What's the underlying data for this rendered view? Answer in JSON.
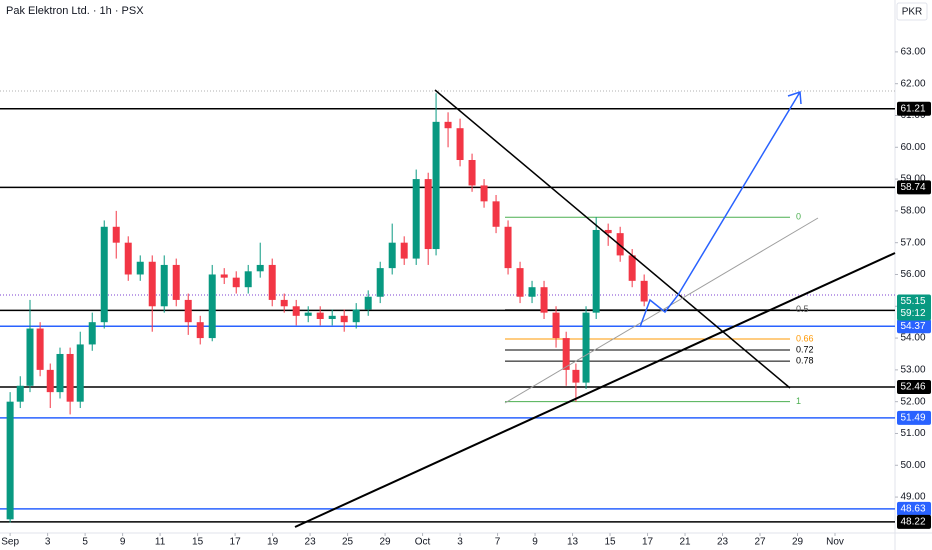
{
  "chart_data": {
    "type": "candlestick",
    "title": "Pak Elektron Ltd. · 1h · PSX",
    "currency": "PKR",
    "countdown": "59:12",
    "ylim": [
      47.87,
      63.94
    ],
    "yticks": [
      {
        "value": 49,
        "label": "49.00"
      },
      {
        "value": 50,
        "label": "50.00"
      },
      {
        "value": 51,
        "label": "51.00"
      },
      {
        "value": 52,
        "label": "52.00"
      },
      {
        "value": 53,
        "label": "53.00"
      },
      {
        "value": 54,
        "label": "54.00"
      },
      {
        "value": 55,
        "label": "55.00"
      },
      {
        "value": 56,
        "label": "56.00"
      },
      {
        "value": 57,
        "label": "57.00"
      },
      {
        "value": 58,
        "label": "58.00"
      },
      {
        "value": 59,
        "label": "59.00"
      },
      {
        "value": 60,
        "label": "60.00"
      },
      {
        "value": 61,
        "label": "61.00"
      },
      {
        "value": 62,
        "label": "62.00"
      },
      {
        "value": 63,
        "label": "63.00"
      }
    ],
    "xlim": [
      -0.27,
      23.6
    ],
    "xticks": [
      {
        "value": 0,
        "label": "Sep"
      },
      {
        "value": 1,
        "label": "3"
      },
      {
        "value": 2,
        "label": "5"
      },
      {
        "value": 3,
        "label": "9"
      },
      {
        "value": 4,
        "label": "11"
      },
      {
        "value": 5,
        "label": "15"
      },
      {
        "value": 6,
        "label": "17"
      },
      {
        "value": 7,
        "label": "19"
      },
      {
        "value": 8,
        "label": "23"
      },
      {
        "value": 9,
        "label": "25"
      },
      {
        "value": 10,
        "label": "29"
      },
      {
        "value": 11,
        "label": "Oct"
      },
      {
        "value": 12,
        "label": "3"
      },
      {
        "value": 13,
        "label": "7"
      },
      {
        "value": 14,
        "label": "9"
      },
      {
        "value": 15,
        "label": "13"
      },
      {
        "value": 16,
        "label": "15"
      },
      {
        "value": 17,
        "label": "17"
      },
      {
        "value": 18,
        "label": "21"
      },
      {
        "value": 19,
        "label": "23"
      },
      {
        "value": 20,
        "label": "27"
      },
      {
        "value": 21,
        "label": "29"
      },
      {
        "value": 22,
        "label": "Nov"
      }
    ],
    "up_color": "#089981",
    "down_color": "#f23645",
    "x": [
      0,
      0.27,
      0.53,
      0.8,
      1.07,
      1.33,
      1.6,
      1.87,
      2.19,
      2.51,
      2.83,
      3.15,
      3.47,
      3.79,
      4.11,
      4.43,
      4.75,
      5.07,
      5.39,
      5.71,
      6.03,
      6.35,
      6.67,
      6.99,
      7.31,
      7.63,
      7.95,
      8.27,
      8.59,
      8.91,
      9.23,
      9.55,
      9.87,
      10.19,
      10.51,
      10.83,
      11.15,
      11.36,
      11.68,
      12.0,
      12.32,
      12.64,
      12.96,
      13.28,
      13.6,
      13.92,
      14.24,
      14.56,
      14.83,
      15.09,
      15.36,
      15.63,
      15.95,
      16.27,
      16.59,
      16.91
    ],
    "open": [
      48.3,
      52.0,
      52.5,
      54.3,
      53.0,
      52.3,
      53.5,
      52.0,
      53.8,
      54.5,
      57.5,
      57.0,
      56.0,
      56.4,
      55.0,
      56.3,
      55.2,
      54.5,
      54.0,
      56.0,
      55.9,
      55.6,
      56.1,
      56.3,
      55.2,
      55.0,
      54.7,
      54.8,
      54.6,
      54.7,
      54.5,
      54.9,
      55.3,
      56.2,
      57.0,
      56.5,
      59.0,
      56.8,
      60.8,
      60.6,
      59.6,
      58.8,
      58.3,
      57.5,
      56.2,
      55.3,
      55.6,
      54.8,
      54.0,
      53.0,
      52.6,
      54.8,
      57.4,
      57.3,
      56.6,
      55.8
    ],
    "high": [
      52.3,
      52.8,
      55.2,
      54.5,
      53.2,
      53.7,
      53.7,
      54.2,
      54.8,
      57.7,
      58.0,
      57.2,
      56.6,
      56.6,
      56.6,
      56.5,
      55.4,
      54.7,
      56.3,
      56.2,
      56.1,
      56.3,
      57.0,
      56.5,
      55.4,
      55.2,
      55.0,
      55.0,
      54.9,
      54.9,
      55.1,
      55.5,
      56.4,
      57.6,
      57.2,
      59.3,
      59.2,
      61.7,
      61.1,
      60.9,
      59.8,
      59.0,
      58.5,
      57.7,
      56.4,
      55.8,
      55.8,
      55.0,
      54.2,
      53.2,
      55.0,
      57.8,
      57.6,
      57.5,
      56.8,
      56.0
    ],
    "low": [
      48.2,
      51.8,
      52.3,
      52.8,
      51.8,
      52.1,
      51.6,
      51.8,
      53.6,
      54.3,
      56.5,
      55.8,
      55.8,
      54.2,
      54.8,
      55.0,
      54.1,
      53.8,
      53.9,
      55.7,
      55.4,
      55.4,
      55.9,
      55.0,
      54.8,
      54.4,
      54.5,
      54.4,
      54.4,
      54.2,
      54.3,
      54.7,
      55.1,
      56.0,
      56.3,
      56.3,
      56.3,
      56.6,
      60.0,
      59.4,
      58.6,
      58.1,
      57.3,
      56.0,
      55.1,
      55.1,
      54.6,
      53.7,
      52.5,
      52.0,
      52.4,
      54.6,
      56.9,
      56.4,
      55.6,
      55.0
    ],
    "close": [
      52.0,
      52.5,
      54.3,
      53.0,
      52.3,
      53.5,
      52.0,
      53.8,
      54.5,
      57.5,
      57.0,
      56.0,
      56.4,
      55.0,
      56.3,
      55.2,
      54.5,
      54.0,
      56.0,
      55.9,
      55.6,
      56.1,
      56.3,
      55.2,
      55.0,
      54.7,
      54.8,
      54.6,
      54.7,
      54.5,
      54.9,
      55.3,
      56.2,
      57.0,
      56.5,
      59.0,
      56.8,
      60.8,
      60.6,
      59.6,
      58.8,
      58.3,
      57.5,
      56.2,
      55.3,
      55.6,
      54.8,
      54.0,
      53.0,
      52.6,
      54.8,
      57.4,
      57.3,
      56.6,
      55.8,
      55.15
    ],
    "levels": [
      {
        "price": 61.21,
        "color": "#000000"
      },
      {
        "price": 58.74,
        "color": "#000000"
      },
      {
        "price": 54.87,
        "color": "#000000"
      },
      {
        "price": 54.37,
        "color": "#2962ff"
      },
      {
        "price": 52.46,
        "color": "#000000"
      },
      {
        "price": 51.49,
        "color": "#2962ff"
      },
      {
        "price": 48.63,
        "color": "#2962ff"
      },
      {
        "price": 48.22,
        "color": "#000000"
      }
    ],
    "last_price": 55.15,
    "fib": {
      "high": 57.8,
      "low": 52.0,
      "levels": [
        0,
        0.5,
        0.66,
        0.72,
        0.78,
        1
      ],
      "colors": [
        "#4caf50",
        "#555555",
        "#ff9800",
        "#000000",
        "#000000",
        "#4caf50"
      ]
    }
  }
}
